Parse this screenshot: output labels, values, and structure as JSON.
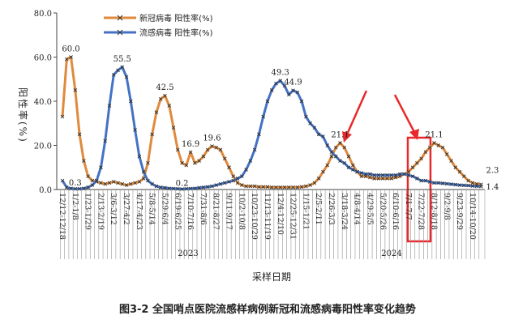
{
  "chart_data": {
    "type": "line",
    "caption": "图3-2  全国哨点医院流感样病例新冠和流感病毒阳性率变化趋势",
    "x_label": "采样日期",
    "y_label": "阳性率(%)",
    "year_labels": [
      "2023",
      "2024"
    ],
    "categories": [
      "12/12-12/18",
      null,
      null,
      "1/2-1/8",
      null,
      null,
      "1/23-1/29",
      null,
      null,
      "2/13-2/19",
      null,
      null,
      "3/6-3/12",
      null,
      null,
      "3/27-4/2",
      null,
      null,
      "4/17-4/23",
      null,
      null,
      "5/8-5/14",
      null,
      null,
      "5/29-6/4",
      null,
      null,
      "6/19-6/25",
      null,
      null,
      "7/10-7/16",
      null,
      null,
      "7/31-8/6",
      null,
      null,
      "8/21-8/27",
      null,
      null,
      "9/11-9/17",
      null,
      null,
      "10/2-10/8",
      null,
      null,
      "10/23-10/29",
      null,
      null,
      "11/13-11/19",
      null,
      null,
      "12/4-12/10",
      null,
      null,
      "12/25-12/31",
      null,
      null,
      "1/15-1/21",
      null,
      null,
      "2/5-2/11",
      null,
      null,
      "2/26-3/3",
      null,
      null,
      "3/18-3/24",
      null,
      null,
      "4/8-4/14",
      null,
      null,
      "4/29-5/5",
      null,
      null,
      "5/20-5/26",
      null,
      null,
      "6/10-6/16",
      null,
      null,
      "7/1-7/7",
      null,
      null,
      "7/22-7/28",
      null,
      null,
      "8/12-8/18",
      null,
      null,
      "9/2-9/8",
      null,
      null,
      "9/23-9/29",
      null,
      null,
      "10/14-10/20",
      null,
      null
    ],
    "series": [
      {
        "name": "新冠病毒 阳性率(%)",
        "color": "#df8a3d",
        "values": [
          33,
          59,
          60.0,
          45,
          25,
          13,
          6,
          4,
          3.5,
          3,
          2.5,
          3,
          3.5,
          3,
          2.5,
          2,
          2.5,
          3,
          3.5,
          5,
          12,
          25,
          35,
          41,
          42.5,
          38,
          28,
          18,
          12,
          11,
          16.9,
          12,
          13,
          15,
          18,
          19.6,
          19,
          18,
          14,
          10,
          6,
          3,
          2,
          1.5,
          1.5,
          1.5,
          1.2,
          1.2,
          1.2,
          1,
          1,
          1,
          1,
          1,
          1,
          1,
          1.2,
          1.5,
          2,
          3,
          5,
          8,
          11,
          15,
          19,
          21.1,
          19,
          15,
          11,
          8,
          6,
          6,
          5.5,
          5,
          5,
          5,
          5,
          5,
          5.5,
          6,
          7,
          8,
          10,
          12,
          14,
          17,
          19,
          21.1,
          20,
          19,
          16,
          13,
          10,
          8,
          6,
          4,
          3,
          2.5,
          2.3
        ],
        "value_labels": [
          null,
          null,
          "60.0",
          null,
          null,
          null,
          null,
          null,
          null,
          null,
          null,
          null,
          null,
          null,
          null,
          null,
          null,
          null,
          null,
          null,
          null,
          null,
          null,
          null,
          "42.5",
          null,
          null,
          null,
          null,
          null,
          "16.9",
          null,
          null,
          null,
          null,
          "19.6",
          null,
          null,
          null,
          null,
          null,
          null,
          null,
          null,
          null,
          null,
          null,
          null,
          null,
          null,
          null,
          null,
          null,
          null,
          null,
          null,
          null,
          null,
          null,
          null,
          null,
          null,
          null,
          null,
          null,
          "21.1",
          null,
          null,
          null,
          null,
          null,
          null,
          null,
          null,
          null,
          null,
          null,
          null,
          null,
          null,
          null,
          null,
          null,
          null,
          null,
          null,
          null,
          "21.1",
          null,
          null,
          null,
          null,
          null,
          null,
          null,
          null,
          null,
          null,
          "2.3"
        ]
      },
      {
        "name": "流感病毒 阳性率(%)",
        "color": "#4472c4",
        "values": [
          4,
          1,
          0.5,
          0.3,
          0.3,
          0.5,
          1,
          2,
          4,
          10,
          22,
          38,
          52,
          54,
          55.5,
          51,
          40,
          27,
          15,
          8,
          4,
          2.5,
          1.5,
          1,
          0.8,
          0.5,
          0.4,
          0.3,
          0.2,
          0.3,
          0.4,
          0.5,
          0.8,
          1,
          1.2,
          1.5,
          2,
          2.5,
          3,
          3.5,
          4,
          5,
          6,
          9,
          13,
          18,
          25,
          33,
          40,
          45,
          48,
          49.3,
          47,
          43,
          44.9,
          44,
          40,
          33,
          30,
          28,
          25,
          24,
          20,
          17,
          15,
          13,
          12,
          10,
          9,
          8,
          7.5,
          7,
          7,
          6.5,
          6.5,
          6.5,
          6.5,
          6.5,
          6.5,
          7,
          7,
          6.5,
          6,
          5,
          4,
          4,
          3.5,
          3,
          3,
          2.8,
          2.6,
          2.4,
          2.2,
          2,
          1.9,
          1.8,
          1.6,
          1.5,
          1.4
        ],
        "value_labels": [
          null,
          null,
          null,
          "0.3",
          null,
          null,
          null,
          null,
          null,
          null,
          null,
          null,
          null,
          null,
          "55.5",
          null,
          null,
          null,
          null,
          null,
          null,
          null,
          null,
          null,
          null,
          null,
          null,
          null,
          "0.2",
          null,
          null,
          null,
          null,
          null,
          null,
          null,
          null,
          null,
          null,
          null,
          null,
          null,
          null,
          null,
          null,
          null,
          null,
          null,
          null,
          null,
          null,
          "49.3",
          null,
          null,
          "44.9",
          null,
          null,
          null,
          null,
          null,
          null,
          null,
          null,
          null,
          null,
          null,
          null,
          null,
          null,
          null,
          null,
          null,
          null,
          null,
          null,
          null,
          null,
          null,
          null,
          null,
          null,
          null,
          null,
          null,
          null,
          null,
          null,
          null,
          null,
          null,
          null,
          null,
          null,
          null,
          null,
          null,
          null,
          null,
          "1.4"
        ]
      }
    ],
    "ylim": [
      0,
      80
    ],
    "yticks": [
      {
        "value": 0,
        "label": "0.0"
      },
      {
        "value": 20,
        "label": "20.0"
      },
      {
        "value": 40,
        "label": "40.0"
      },
      {
        "value": 60,
        "label": "60.0"
      },
      {
        "value": 80,
        "label": "80.0"
      }
    ]
  }
}
